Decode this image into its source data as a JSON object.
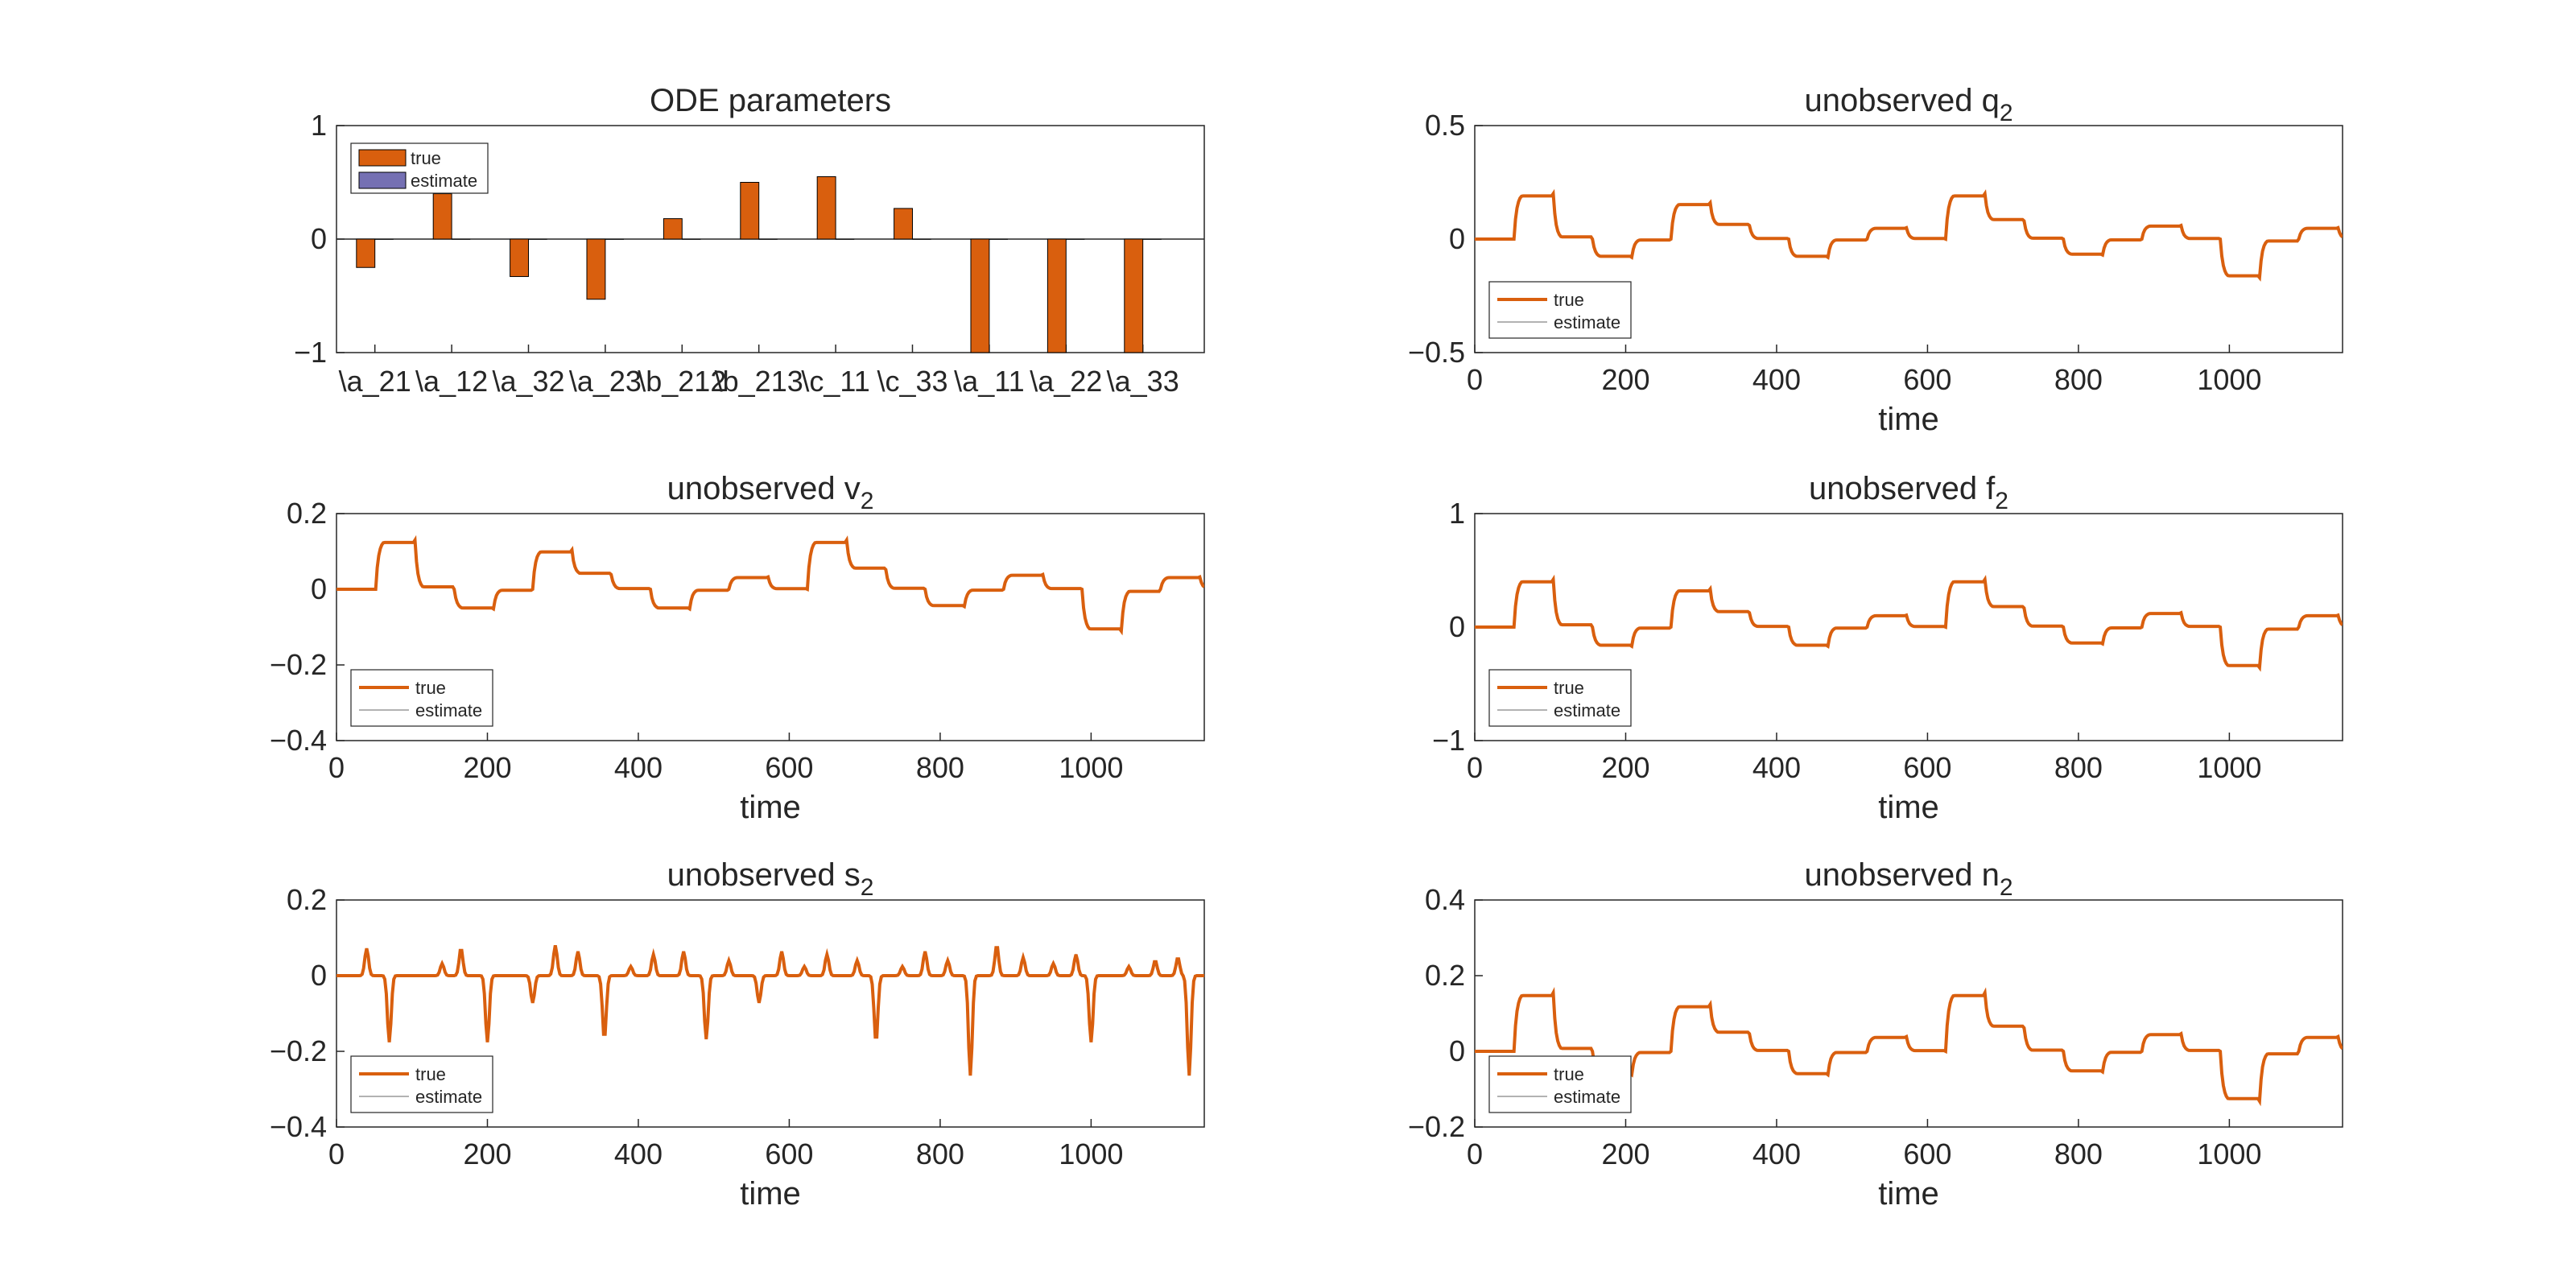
{
  "figure": {
    "colors": {
      "true": "#d95f0e",
      "estimate": "#999999",
      "axis": "#262626",
      "bar_estimate": "#7570b3"
    }
  },
  "chart_data": [
    {
      "id": "ode-params",
      "type": "bar",
      "title": "ODE parameters",
      "xlabel": "",
      "ylabel": "",
      "ylim": [
        -1,
        1
      ],
      "yticks": [
        -1,
        0,
        1
      ],
      "categories": [
        "\\a_21",
        "\\a_12",
        "\\a_32",
        "\\a_23",
        "\\b_212",
        "\\b_213",
        "\\c_11",
        "\\c_33",
        "\\a_11",
        "\\a_22",
        "\\a_33"
      ],
      "series": [
        {
          "name": "true",
          "values": [
            -0.25,
            0.4,
            -0.33,
            -0.53,
            0.18,
            0.5,
            0.55,
            0.27,
            -1.0,
            -1.0,
            -1.0
          ]
        },
        {
          "name": "estimate",
          "values": [
            0,
            0,
            0,
            0,
            0,
            0,
            0,
            0,
            0,
            0,
            0
          ]
        }
      ],
      "legend": "top-left"
    },
    {
      "id": "q2",
      "type": "line",
      "title": "unobserved q",
      "title_sub": "2",
      "xlabel": "time",
      "xlim": [
        0,
        1150
      ],
      "ylim": [
        -0.5,
        0.5
      ],
      "xticks": [
        0,
        200,
        400,
        600,
        800,
        1000
      ],
      "yticks": [
        -0.5,
        0,
        0.5
      ],
      "series": [
        {
          "name": "true",
          "amplitude": 0.2
        },
        {
          "name": "estimate"
        }
      ],
      "legend": "bottom-left"
    },
    {
      "id": "v2",
      "type": "line",
      "title": "unobserved v",
      "title_sub": "2",
      "xlabel": "time",
      "xlim": [
        0,
        1150
      ],
      "ylim": [
        -0.4,
        0.2
      ],
      "xticks": [
        0,
        200,
        400,
        600,
        800,
        1000
      ],
      "yticks": [
        -0.4,
        -0.2,
        0,
        0.2
      ],
      "series": [
        {
          "name": "true",
          "amplitude": 0.13
        },
        {
          "name": "estimate"
        }
      ],
      "legend": "bottom-left"
    },
    {
      "id": "f2",
      "type": "line",
      "title": "unobserved f",
      "title_sub": "2",
      "xlabel": "time",
      "xlim": [
        0,
        1150
      ],
      "ylim": [
        -1,
        1
      ],
      "xticks": [
        0,
        200,
        400,
        600,
        800,
        1000
      ],
      "yticks": [
        -1,
        0,
        1
      ],
      "series": [
        {
          "name": "true",
          "amplitude": 0.42
        },
        {
          "name": "estimate"
        }
      ],
      "legend": "bottom-left"
    },
    {
      "id": "s2",
      "type": "line",
      "title": "unobserved s",
      "title_sub": "2",
      "xlabel": "time",
      "xlim": [
        0,
        1150
      ],
      "ylim": [
        -0.4,
        0.2
      ],
      "xticks": [
        0,
        200,
        400,
        600,
        800,
        1000
      ],
      "yticks": [
        -0.4,
        -0.2,
        0,
        0.2
      ],
      "series": [
        {
          "name": "true",
          "amplitude": 0.08
        },
        {
          "name": "estimate"
        }
      ],
      "legend": "bottom-left"
    },
    {
      "id": "n2",
      "type": "line",
      "title": "unobserved n",
      "title_sub": "2",
      "xlabel": "time",
      "xlim": [
        0,
        1150
      ],
      "ylim": [
        -0.2,
        0.4
      ],
      "xticks": [
        0,
        200,
        400,
        600,
        800,
        1000
      ],
      "yticks": [
        -0.2,
        0,
        0.2,
        0.4
      ],
      "series": [
        {
          "name": "true",
          "amplitude": 0.155
        },
        {
          "name": "estimate"
        }
      ],
      "legend": "bottom-left"
    }
  ]
}
